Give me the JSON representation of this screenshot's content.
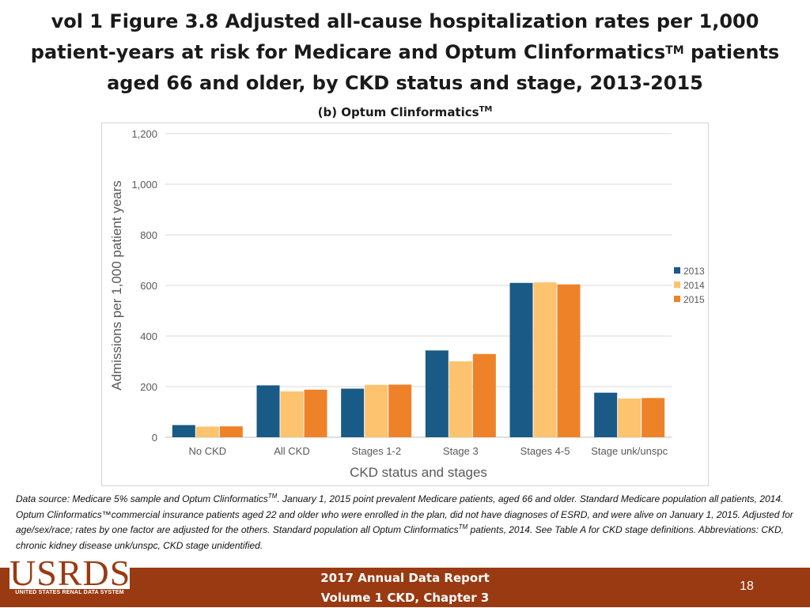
{
  "title": {
    "line1": "vol 1 Figure 3.8 Adjusted all-cause hospitalization rates per 1,000",
    "line2_a": "patient-years at risk for Medicare and Optum Clinformatics",
    "line2_sup": "TM",
    "line2_b": " patients",
    "line3": "aged 66 and older, by CKD status and stage, 2013-2015"
  },
  "subtitle": {
    "text": "(b) Optum Clinformatics",
    "sup": "TM"
  },
  "colors": {
    "2013": "#1a5a87",
    "2014": "#fdc36e",
    "2015": "#ee8229",
    "footer": "#9a3a12"
  },
  "chart_data": {
    "type": "bar",
    "categories": [
      "No CKD",
      "All CKD",
      "Stages 1-2",
      "Stage 3",
      "Stages 4-5",
      "Stage unk/unspc"
    ],
    "series": [
      {
        "name": "2013",
        "color": "#1a5a87",
        "values": [
          48,
          205,
          192,
          343,
          610,
          176
        ]
      },
      {
        "name": "2014",
        "color": "#fdc36e",
        "values": [
          42,
          181,
          207,
          300,
          612,
          153
        ]
      },
      {
        "name": "2015",
        "color": "#ee8229",
        "values": [
          43,
          188,
          208,
          329,
          604,
          155
        ]
      }
    ],
    "xlabel": "CKD status and stages",
    "ylabel": "Admissions per 1,000 patient years",
    "ylim": [
      0,
      1200
    ],
    "yticks": [
      0,
      200,
      400,
      600,
      800,
      1000,
      1200
    ],
    "ytick_labels": [
      "0",
      "200",
      "400",
      "600",
      "800",
      "1,000",
      "1,200"
    ],
    "grid": true,
    "legend_position": "right"
  },
  "source": {
    "p1": "Data source: Medicare 5% sample and Optum Clinformatics",
    "sup1": "TM",
    "p2": ". January 1, 2015 point prevalent Medicare patients, aged 66 and older. Standard Medicare population all patients, 2014. Optum Clinformatics™commercial insurance patients aged 22 and older who were enrolled in the plan, did not have diagnoses of ESRD, and were alive on January 1, 2015. Adjusted for age/sex/race; rates by one factor are adjusted for the others. Standard population all Optum Clinformatics",
    "sup2": "TM",
    "p3": " patients, 2014. See Table A for CKD stage definitions. Abbreviations: CKD, chronic kidney disease unk/unspc, CKD stage unidentified."
  },
  "footer": {
    "logo_word": "USRDS",
    "logo_tagline": "UNITED STATES RENAL DATA SYSTEM",
    "line1": "2017 Annual Data Report",
    "line2": "Volume 1 CKD, Chapter 3",
    "page_number": "18"
  }
}
